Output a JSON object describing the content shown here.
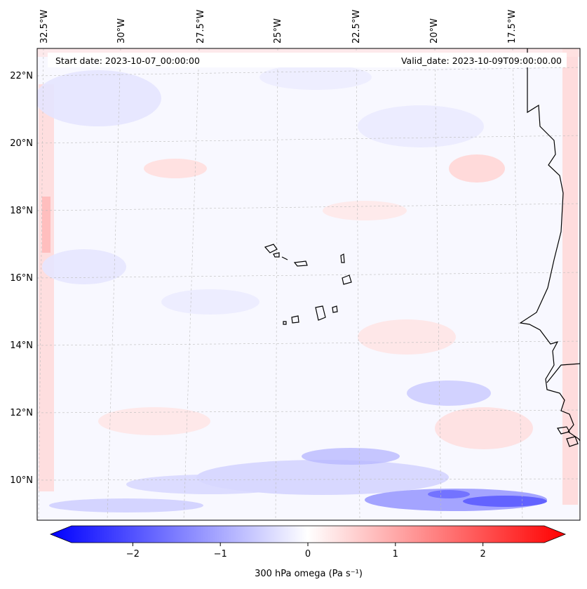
{
  "map": {
    "start_date": "Start date: 2023-10-07_00:00:00",
    "valid_date": "Valid_date: 2023-10-09T09:00:00.00",
    "lon_labels": [
      "32.5°W",
      "30°W",
      "27.5°W",
      "25°W",
      "22.5°W",
      "20°W",
      "17.5°W"
    ],
    "lat_labels": [
      "22°N",
      "20°N",
      "18°N",
      "16°N",
      "14°N",
      "12°N",
      "10°N"
    ],
    "colors": {
      "negative": "#0000ff",
      "positive": "#ff0000",
      "neutral": "#ffffff",
      "coastline": "#000000",
      "gridline": "#bbbbbb"
    }
  },
  "colorbar": {
    "label": "300 hPa omega (Pa s⁻¹)",
    "tick_labels": [
      "−2",
      "−1",
      "0",
      "1",
      "2"
    ],
    "ticks": [
      -2,
      -1,
      0,
      1,
      2
    ],
    "range": [
      -2.7,
      2.7
    ]
  }
}
